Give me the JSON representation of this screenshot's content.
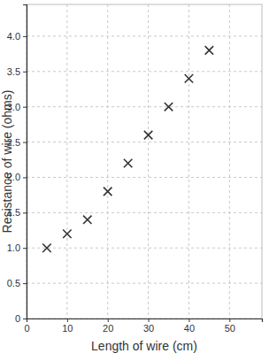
{
  "chart_data": {
    "type": "scatter",
    "x_label": "Length of wire (cm)",
    "y_label": "Resistance of wire (ohms)",
    "x": [
      5,
      10,
      15,
      20,
      25,
      30,
      35,
      40,
      45
    ],
    "values": [
      1.0,
      1.2,
      1.4,
      1.8,
      2.2,
      2.6,
      3.0,
      3.4,
      3.8
    ],
    "marker": "x",
    "color": "#333333",
    "xlim": [
      0,
      58
    ],
    "xticks": [
      0,
      10,
      20,
      30,
      40,
      50
    ],
    "ylim": [
      0,
      4.45
    ],
    "yticks": [
      0,
      0.5,
      {
        "value": 1,
        "label": "1.0"
      },
      1.5,
      {
        "value": 2,
        "label": "2.0"
      },
      2.5,
      {
        "value": 3,
        "label": "3.0"
      },
      3.5,
      {
        "value": 4,
        "label": "4.0"
      }
    ],
    "grid": true
  }
}
